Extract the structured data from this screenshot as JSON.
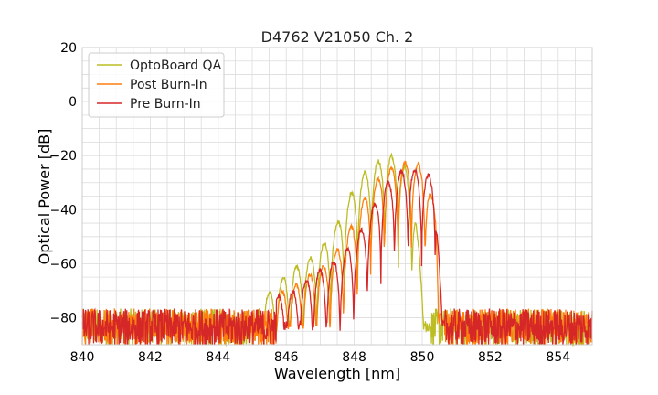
{
  "chart_data": {
    "type": "line",
    "title": "D4762 V21050 Ch. 2",
    "xlabel": "Wavelength [nm]",
    "ylabel": "Optical Power [dB]",
    "xlim": [
      840,
      855
    ],
    "ylim": [
      -90,
      20
    ],
    "x_ticks": [
      840,
      842,
      844,
      846,
      848,
      850,
      852,
      854
    ],
    "x_tick_labels": [
      "840",
      "842",
      "844",
      "846",
      "848",
      "850",
      "852",
      "854"
    ],
    "y_ticks": [
      20,
      0,
      -20,
      -40,
      -60,
      -80
    ],
    "y_tick_labels": [
      "20",
      "0",
      "−20",
      "−40",
      "−60",
      "−80"
    ],
    "grid": true,
    "legend_position": "top-left",
    "noise_floor_db": -85,
    "series": [
      {
        "name": "OptoBoard QA",
        "color": "#bcbd22",
        "x": [
          845.5,
          845.9,
          846.3,
          846.7,
          847.1,
          847.5,
          847.9,
          848.3,
          848.7,
          849.1,
          849.5,
          849.8,
          850.0,
          850.2
        ],
        "y": [
          -71,
          -65,
          -61,
          -58,
          -53,
          -45,
          -34,
          -26,
          -22,
          -20,
          -24,
          -40,
          -70,
          -88
        ],
        "note_peaks_db": [
          -69,
          -63,
          -61,
          -55,
          -45,
          -35,
          -26,
          -21,
          -19,
          -18,
          -23
        ]
      },
      {
        "name": "Post Burn-In",
        "color": "#ff7f0e",
        "x": [
          846.0,
          846.4,
          846.8,
          847.2,
          847.6,
          848.0,
          848.4,
          848.8,
          849.2,
          849.6,
          850.0,
          850.4,
          850.6
        ],
        "y": [
          -70,
          -67,
          -63,
          -60,
          -53,
          -44,
          -33,
          -27,
          -24,
          -22,
          -24,
          -40,
          -80
        ]
      },
      {
        "name": "Pre Burn-In",
        "color": "#d62728",
        "x": [
          846.0,
          846.5,
          846.9,
          847.3,
          847.7,
          848.1,
          848.5,
          848.9,
          849.3,
          849.7,
          850.1,
          850.4,
          850.6
        ],
        "y": [
          -72,
          -67,
          -63,
          -60,
          -56,
          -50,
          -40,
          -31,
          -26,
          -25,
          -27,
          -28,
          -85
        ]
      }
    ]
  }
}
